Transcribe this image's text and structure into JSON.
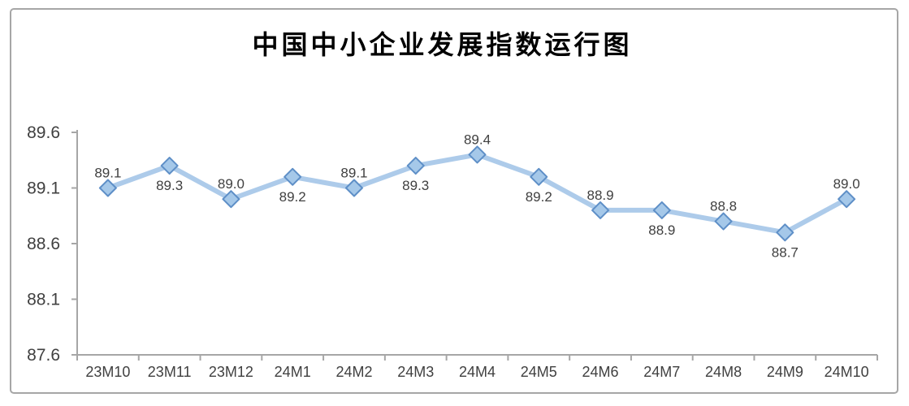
{
  "chart_data": {
    "type": "line",
    "title": "中国中小企业发展指数运行图",
    "categories": [
      "23M10",
      "23M11",
      "23M12",
      "24M1",
      "24M2",
      "24M3",
      "24M4",
      "24M5",
      "24M6",
      "24M7",
      "24M8",
      "24M9",
      "24M10"
    ],
    "values": [
      89.1,
      89.3,
      89.0,
      89.2,
      89.1,
      89.3,
      89.4,
      89.2,
      88.9,
      88.9,
      88.8,
      88.7,
      89.0
    ],
    "point_labels": [
      "89.1",
      "89.3",
      "89.0",
      "89.2",
      "89.1",
      "89.3",
      "89.4",
      "89.2",
      "88.9",
      "88.9",
      "88.8",
      "88.7",
      "89.0"
    ],
    "label_positions": [
      "above",
      "below",
      "above",
      "below",
      "above",
      "below",
      "above",
      "below",
      "above",
      "below",
      "above",
      "below",
      "above"
    ],
    "y_ticks": [
      "89.6",
      "89.1",
      "88.6",
      "88.1",
      "87.6"
    ],
    "ylim": [
      87.6,
      89.6
    ],
    "xlabel": "",
    "ylabel": "",
    "grid": false,
    "legend": "none",
    "colors": {
      "line": "#ADCBEA",
      "marker_fill": "#A5C8E9",
      "marker_stroke": "#5E8FC7",
      "axis": "#A6A6A6",
      "tick_text": "#404040",
      "data_label_text": "#404040",
      "title_text": "#000000",
      "frame_border": "#A6A6A6",
      "background": "#FFFFFF"
    }
  }
}
